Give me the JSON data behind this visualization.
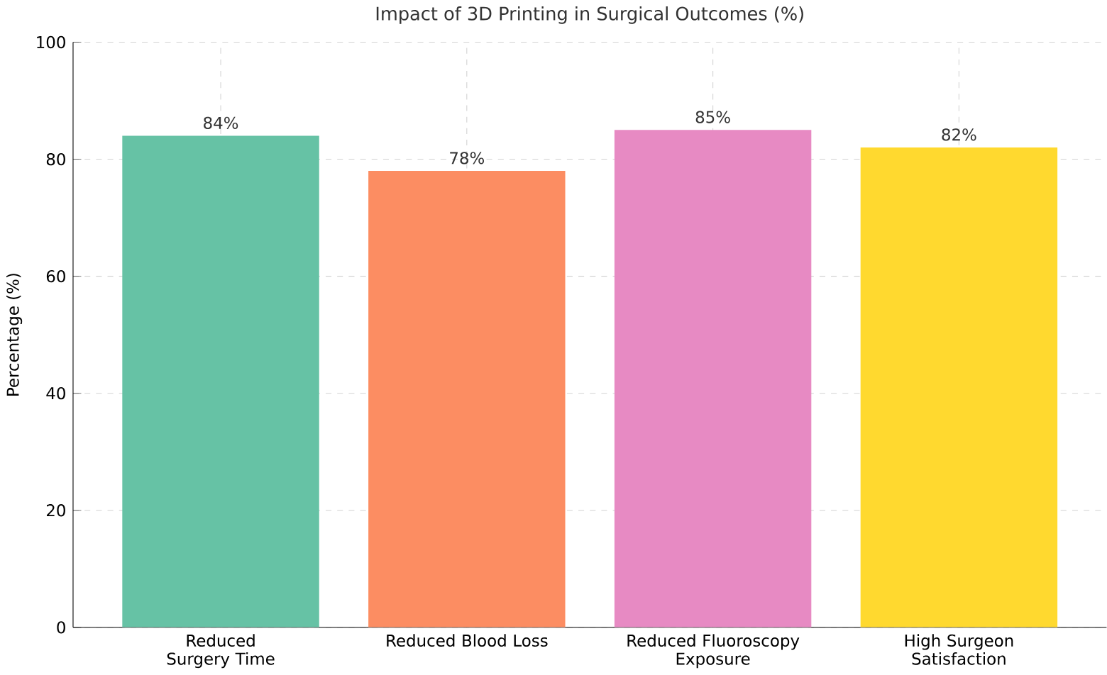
{
  "chart_data": {
    "type": "bar",
    "title": "Impact of 3D Printing in Surgical Outcomes (%)",
    "ylabel": "Percentage (%)",
    "categories": [
      "Reduced Surgery Time",
      "Reduced Blood Loss",
      "Reduced Fluoroscopy Exposure",
      "High Surgeon Satisfaction"
    ],
    "values": [
      84,
      78,
      85,
      82
    ],
    "value_labels": [
      "84%",
      "78%",
      "85%",
      "82%"
    ],
    "colors": [
      "#66c2a5",
      "#fc8d62",
      "#e78ac3",
      "#ffd92f"
    ],
    "ylim": [
      0,
      100
    ],
    "yticks": [
      0,
      20,
      40,
      60,
      80,
      100
    ],
    "grid": true
  }
}
